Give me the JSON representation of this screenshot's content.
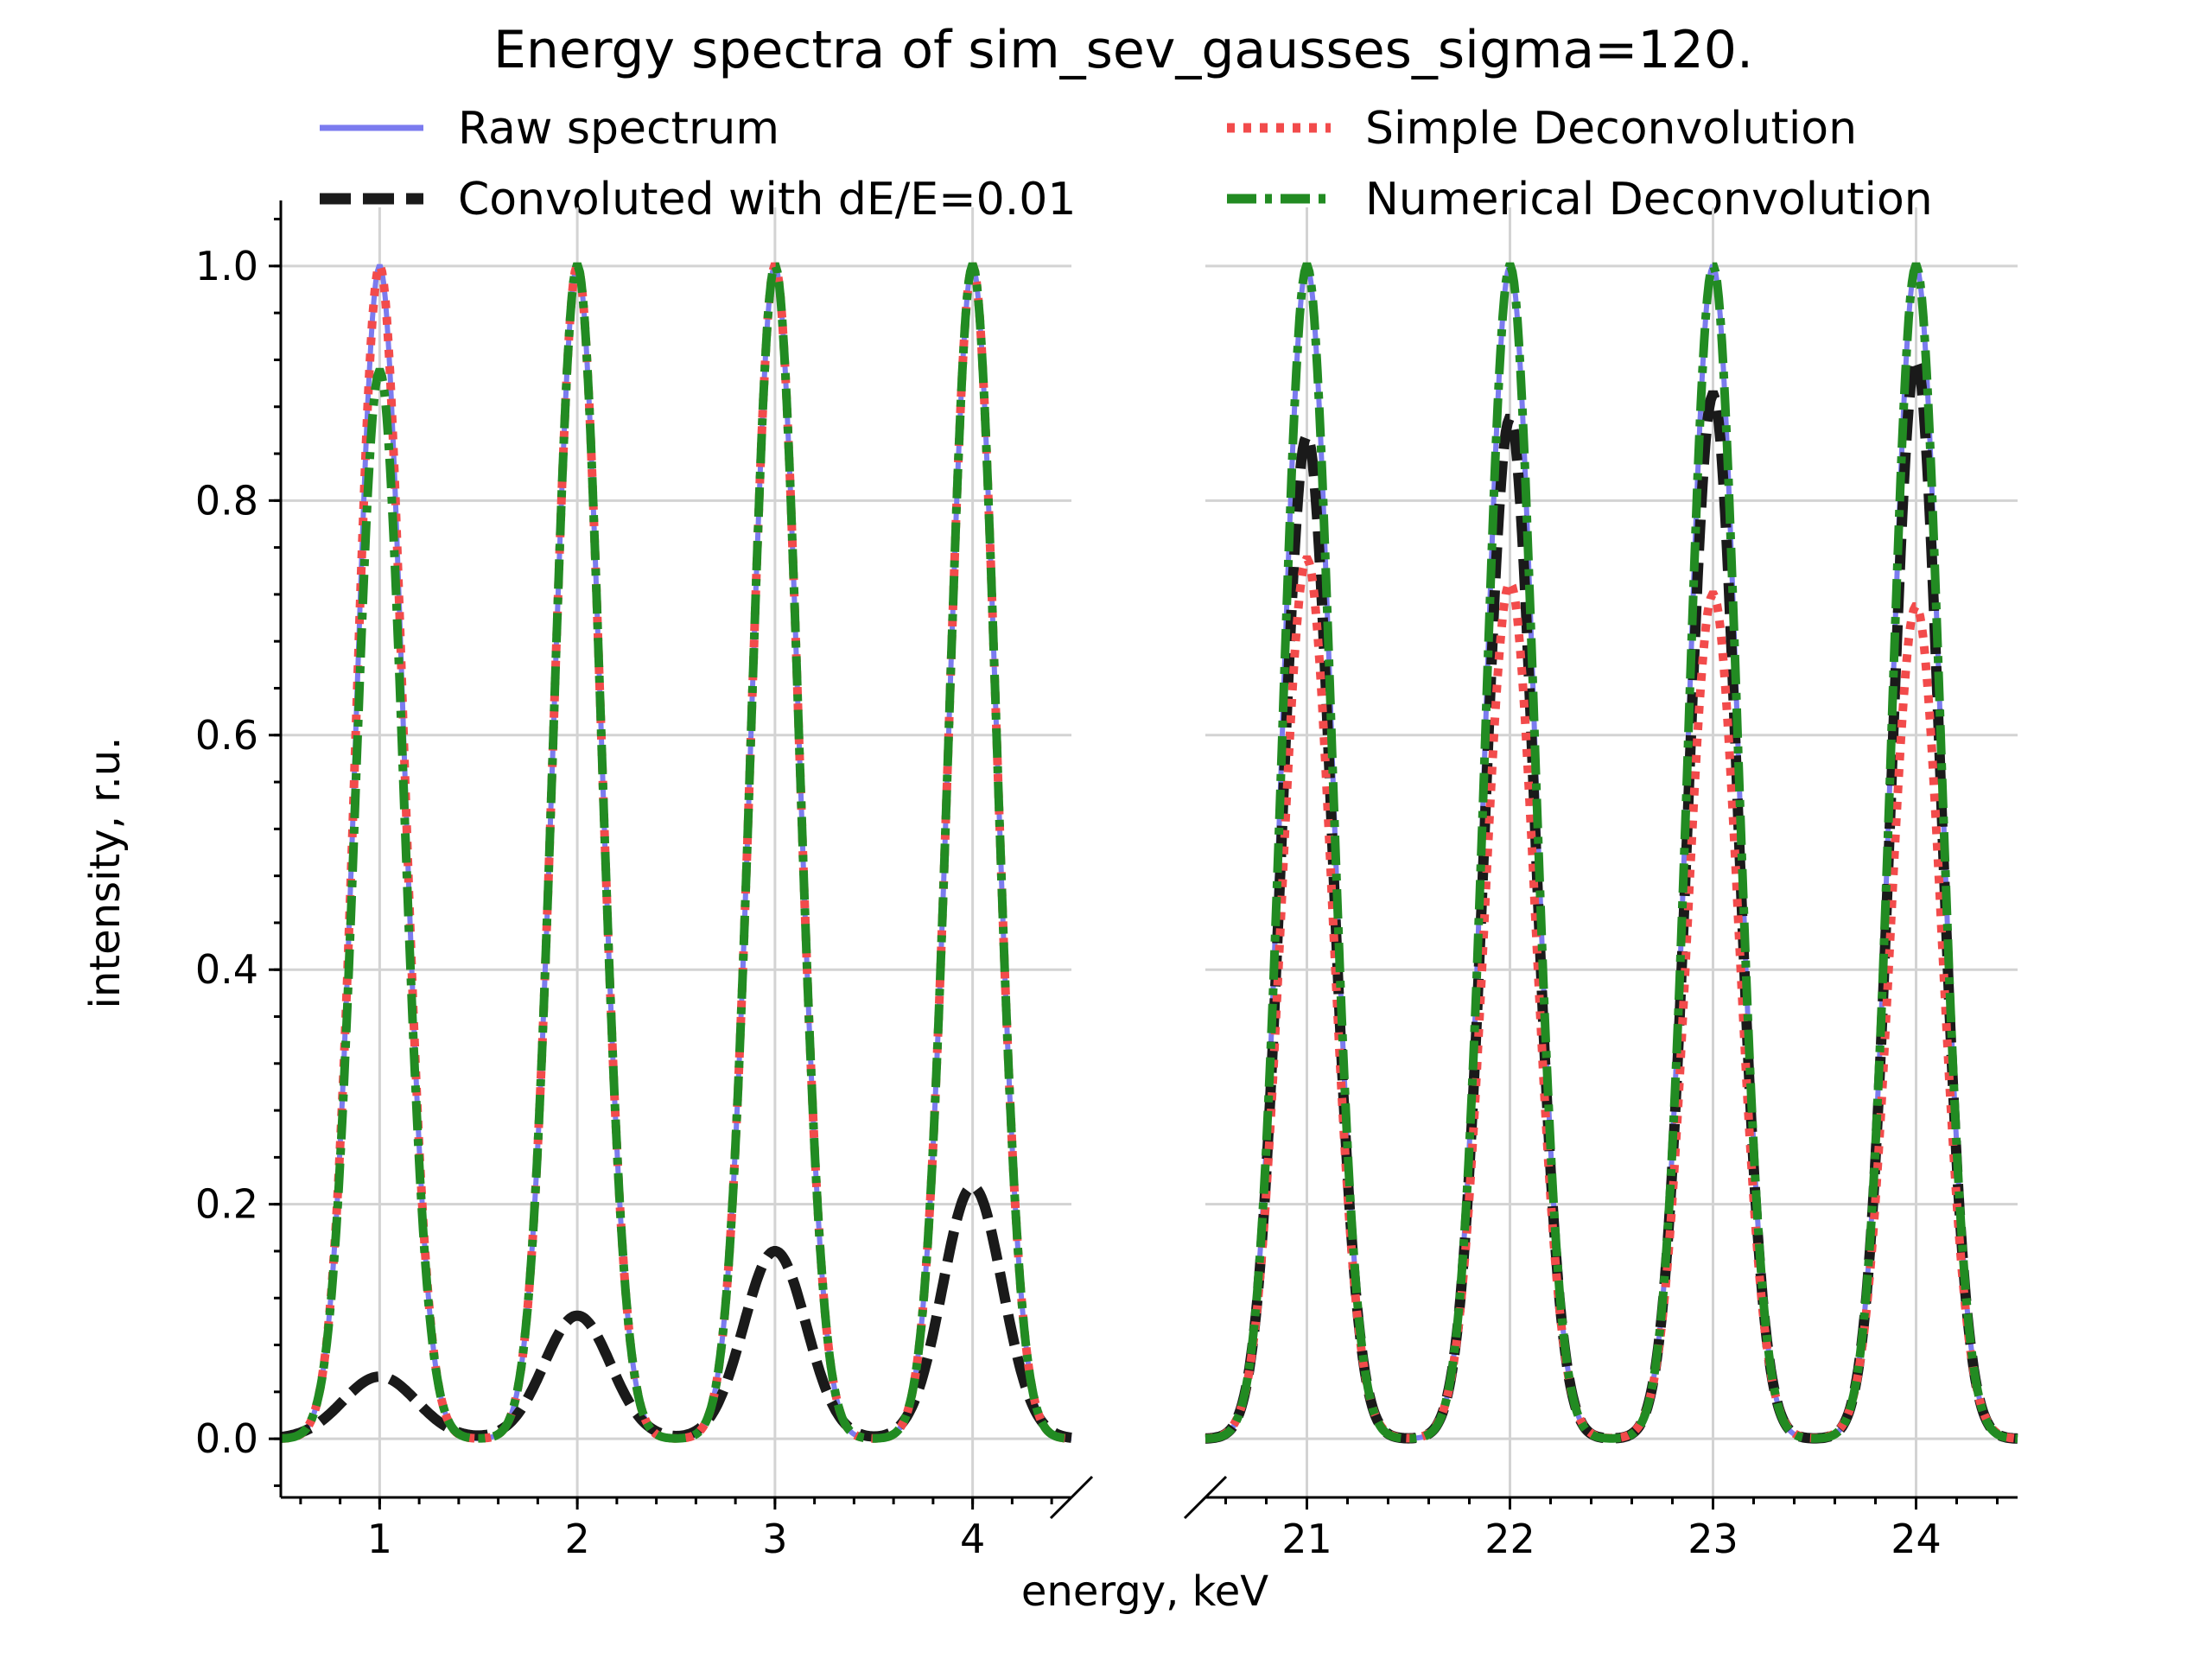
{
  "chart_data": {
    "type": "line",
    "title": "Energy spectra of sim_sev_gausses_sigma=120.",
    "xlabel": "energy, keV",
    "ylabel": "intensity, r.u.",
    "ylim": [
      -0.05,
      1.05
    ],
    "yticks": [
      0.0,
      0.2,
      0.4,
      0.6,
      0.8,
      1.0
    ],
    "ytick_labels": [
      "0.0",
      "0.2",
      "0.4",
      "0.6",
      "0.8",
      "1.0"
    ],
    "grid": true,
    "broken_x_axis": true,
    "legend_placement": "top, two columns",
    "panels": [
      {
        "xlim": [
          0.5,
          4.5
        ],
        "xticks": [
          1,
          2,
          3,
          4
        ],
        "xtick_labels": [
          "1",
          "2",
          "3",
          "4"
        ]
      },
      {
        "xlim": [
          20.5,
          24.5
        ],
        "xticks": [
          21,
          22,
          23,
          24
        ],
        "xtick_labels": [
          "21",
          "22",
          "23",
          "24"
        ]
      }
    ],
    "peak_sigma_keV": 0.12,
    "series": [
      {
        "name": "Raw spectrum",
        "color": "#7b7bef",
        "style": "solid",
        "peaks": [
          {
            "x": 1,
            "y": 1.0
          },
          {
            "x": 2,
            "y": 1.0
          },
          {
            "x": 3,
            "y": 1.0
          },
          {
            "x": 4,
            "y": 1.0
          },
          {
            "x": 21,
            "y": 1.0
          },
          {
            "x": 22,
            "y": 1.0
          },
          {
            "x": 23,
            "y": 1.0
          },
          {
            "x": 24,
            "y": 1.0
          }
        ]
      },
      {
        "name": "Convoluted with dE/E=0.01",
        "color": "#1a1a1a",
        "style": "dashed",
        "peaks": [
          {
            "x": 1,
            "y": 0.053
          },
          {
            "x": 2,
            "y": 0.105
          },
          {
            "x": 3,
            "y": 0.16
          },
          {
            "x": 4,
            "y": 0.215
          },
          {
            "x": 21,
            "y": 0.855
          },
          {
            "x": 22,
            "y": 0.87
          },
          {
            "x": 23,
            "y": 0.89
          },
          {
            "x": 24,
            "y": 0.92
          }
        ]
      },
      {
        "name": "Simple Deconvolution",
        "color": "#f24b4b",
        "style": "dotted",
        "peaks": [
          {
            "x": 1,
            "y": 1.0
          },
          {
            "x": 2,
            "y": 1.0
          },
          {
            "x": 3,
            "y": 1.0
          },
          {
            "x": 4,
            "y": 1.0
          },
          {
            "x": 21,
            "y": 0.75
          },
          {
            "x": 22,
            "y": 0.73
          },
          {
            "x": 23,
            "y": 0.72
          },
          {
            "x": 24,
            "y": 0.71
          }
        ]
      },
      {
        "name": "Numerical Deconvolution",
        "color": "#228b22",
        "style": "dashdot",
        "peaks": [
          {
            "x": 1,
            "y": 0.91
          },
          {
            "x": 2,
            "y": 1.0
          },
          {
            "x": 3,
            "y": 1.0
          },
          {
            "x": 4,
            "y": 1.0
          },
          {
            "x": 21,
            "y": 1.0
          },
          {
            "x": 22,
            "y": 1.0
          },
          {
            "x": 23,
            "y": 1.0
          },
          {
            "x": 24,
            "y": 1.0
          }
        ]
      }
    ]
  }
}
